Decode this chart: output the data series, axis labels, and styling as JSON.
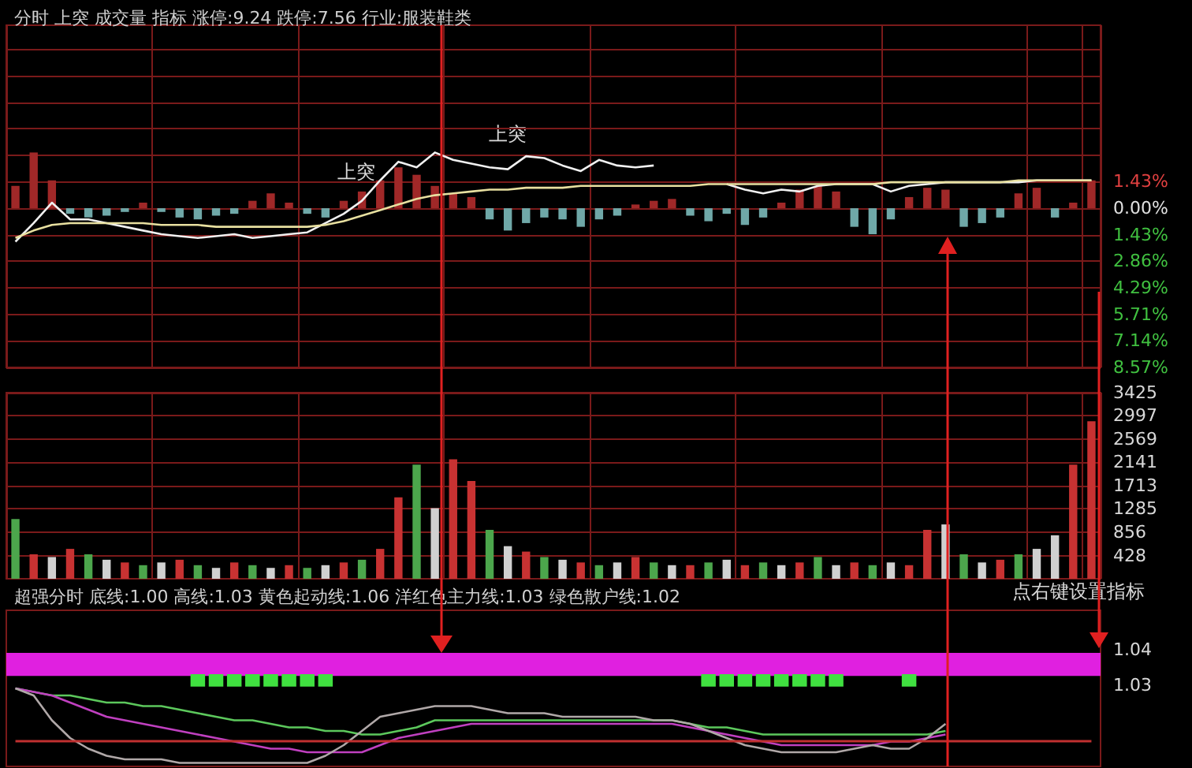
{
  "chart_data": [
    {
      "type": "line",
      "title": "分时 上突 成交量 指标 涨停:9.24 跌停:7.56 行业:服装鞋类",
      "categories": [
        null,
        null,
        null,
        null,
        null,
        null,
        null,
        null,
        null,
        null,
        null,
        null,
        null,
        null,
        null,
        null,
        null,
        null,
        null,
        null,
        null,
        null,
        null,
        null,
        null,
        null,
        null,
        null,
        null,
        null,
        null,
        null,
        null,
        null,
        null,
        null,
        null,
        null,
        null,
        null,
        null,
        null,
        null,
        null,
        null,
        null,
        null,
        null,
        null,
        null,
        null,
        null,
        null,
        null,
        null,
        null,
        null,
        null,
        null,
        null
      ],
      "series": [
        {
          "type": "bar",
          "values": [
            1.2,
            3.0,
            1.5,
            -0.3,
            -0.5,
            -0.4,
            -0.2,
            0.3,
            -0.2,
            -0.5,
            -0.6,
            -0.4,
            -0.3,
            0.4,
            0.8,
            0.3,
            -0.3,
            -0.5,
            0.4,
            0.9,
            1.5,
            2.2,
            1.8,
            1.2,
            0.8,
            0.6,
            -0.6,
            -1.2,
            -0.8,
            -0.5,
            -0.6,
            -1.0,
            -0.6,
            -0.4,
            0.2,
            0.4,
            0.5,
            -0.4,
            -0.7,
            -0.3,
            -0.9,
            -0.5,
            0.3,
            1.0,
            1.2,
            0.9,
            -1.0,
            -1.4,
            -0.6,
            0.6,
            1.1,
            1.0,
            -1.0,
            -0.8,
            -0.5,
            0.8,
            1.1,
            -0.5,
            0.3,
            1.5
          ],
          "colors": [
            "#a02828",
            "#a02828",
            "#a02828",
            "#6fa8a8",
            "#6fa8a8",
            "#6fa8a8",
            "#6fa8a8",
            "#a02828",
            "#6fa8a8",
            "#6fa8a8",
            "#6fa8a8",
            "#6fa8a8",
            "#6fa8a8",
            "#a02828",
            "#a02828",
            "#a02828",
            "#6fa8a8",
            "#6fa8a8",
            "#a02828",
            "#a02828",
            "#a02828",
            "#a02828",
            "#a02828",
            "#a02828",
            "#a02828",
            "#a02828",
            "#6fa8a8",
            "#6fa8a8",
            "#6fa8a8",
            "#6fa8a8",
            "#6fa8a8",
            "#6fa8a8",
            "#6fa8a8",
            "#6fa8a8",
            "#a02828",
            "#a02828",
            "#a02828",
            "#6fa8a8",
            "#6fa8a8",
            "#6fa8a8",
            "#6fa8a8",
            "#6fa8a8",
            "#a02828",
            "#a02828",
            "#a02828",
            "#a02828",
            "#6fa8a8",
            "#6fa8a8",
            "#6fa8a8",
            "#a02828",
            "#a02828",
            "#a02828",
            "#6fa8a8",
            "#6fa8a8",
            "#6fa8a8",
            "#a02828",
            "#a02828",
            "#6fa8a8",
            "#a02828",
            "#a02828"
          ]
        },
        {
          "color": "#f0f0f0",
          "values": [
            -1.8,
            -0.8,
            0.3,
            -0.6,
            -0.6,
            -0.8,
            -1.0,
            -1.2,
            -1.4,
            -1.5,
            -1.6,
            -1.5,
            -1.4,
            -1.6,
            -1.5,
            -1.4,
            -1.3,
            -0.8,
            -0.3,
            0.4,
            1.5,
            2.5,
            2.2,
            3.0,
            2.6,
            2.4,
            2.2,
            2.1,
            2.8,
            2.7,
            2.3,
            2.0,
            2.6,
            2.3,
            2.2,
            2.3,
            null,
            null,
            null,
            1.3,
            1.0,
            0.8,
            1.0,
            0.9,
            1.2,
            1.3,
            1.3,
            1.3,
            0.9,
            1.2,
            1.3,
            1.4,
            1.4,
            1.4,
            1.4,
            1.4,
            1.5,
            1.5,
            1.5,
            1.5
          ]
        },
        {
          "color": "#e8e0a0",
          "values": [
            -1.6,
            -1.2,
            -0.9,
            -0.8,
            -0.8,
            -0.8,
            -0.8,
            -0.8,
            -0.9,
            -0.9,
            -0.9,
            -1.0,
            -1.0,
            -1.0,
            -1.0,
            -1.0,
            -1.0,
            -0.9,
            -0.7,
            -0.4,
            -0.1,
            0.2,
            0.5,
            0.7,
            0.8,
            0.9,
            1.0,
            1.0,
            1.1,
            1.1,
            1.1,
            1.2,
            1.2,
            1.2,
            1.2,
            1.2,
            1.2,
            1.2,
            1.3,
            1.3,
            1.3,
            1.3,
            1.3,
            1.3,
            1.3,
            1.3,
            1.3,
            1.3,
            1.4,
            1.4,
            1.4,
            1.4,
            1.4,
            1.4,
            1.4,
            1.5,
            1.5,
            1.5,
            1.5,
            1.5
          ]
        }
      ],
      "ylim": [
        -8.57,
        9.85
      ],
      "yticks": [
        {
          "value": 8.57,
          "label": null
        },
        {
          "value": 7.14,
          "label": null
        },
        {
          "value": 5.71,
          "label": null
        },
        {
          "value": 4.29,
          "label": null
        },
        {
          "value": 2.86,
          "label": null
        },
        {
          "value": 1.43,
          "label": "1.43%"
        },
        {
          "value": 0,
          "label": "0.00%"
        },
        {
          "value": -1.43,
          "label": "1.43%"
        },
        {
          "value": -2.86,
          "label": "2.86%"
        },
        {
          "value": -4.29,
          "label": "4.29%"
        },
        {
          "value": -5.71,
          "label": "5.71%"
        },
        {
          "value": -7.14,
          "label": "7.14%"
        },
        {
          "value": -8.57,
          "label": "8.57%"
        }
      ],
      "annotations": [
        "上突",
        "上突"
      ],
      "grid": true,
      "marker": "none"
    },
    {
      "type": "bar",
      "categories": [
        null,
        null,
        null,
        null,
        null,
        null,
        null,
        null,
        null,
        null,
        null,
        null,
        null,
        null,
        null,
        null,
        null,
        null,
        null,
        null,
        null,
        null,
        null,
        null,
        null,
        null,
        null,
        null,
        null,
        null,
        null,
        null,
        null,
        null,
        null,
        null,
        null,
        null,
        null,
        null,
        null,
        null,
        null,
        null,
        null,
        null,
        null,
        null,
        null,
        null,
        null,
        null,
        null,
        null,
        null,
        null,
        null,
        null,
        null,
        null
      ],
      "values": [
        1100,
        450,
        400,
        550,
        450,
        350,
        300,
        250,
        300,
        350,
        250,
        200,
        300,
        250,
        200,
        250,
        200,
        250,
        300,
        350,
        550,
        1500,
        2100,
        1300,
        2200,
        1800,
        900,
        600,
        500,
        400,
        350,
        300,
        250,
        300,
        400,
        300,
        250,
        250,
        300,
        350,
        250,
        300,
        250,
        300,
        400,
        250,
        300,
        250,
        300,
        250,
        900,
        1000,
        450,
        300,
        350,
        450,
        550,
        800,
        2100,
        2900
      ],
      "colors": [
        "#4ca64c",
        "#c83232",
        "#d0d0d0",
        "#c83232",
        "#4ca64c",
        "#d0d0d0",
        "#c83232",
        "#4ca64c",
        "#d0d0d0",
        "#c83232",
        "#4ca64c",
        "#d0d0d0",
        "#c83232",
        "#4ca64c",
        "#d0d0d0",
        "#c83232",
        "#4ca64c",
        "#d0d0d0",
        "#c83232",
        "#4ca64c",
        "#c83232",
        "#c83232",
        "#4ca64c",
        "#d0d0d0",
        "#c83232",
        "#c83232",
        "#4ca64c",
        "#d0d0d0",
        "#c83232",
        "#4ca64c",
        "#d0d0d0",
        "#c83232",
        "#4ca64c",
        "#d0d0d0",
        "#c83232",
        "#4ca64c",
        "#d0d0d0",
        "#c83232",
        "#4ca64c",
        "#d0d0d0",
        "#c83232",
        "#4ca64c",
        "#d0d0d0",
        "#c83232",
        "#4ca64c",
        "#d0d0d0",
        "#c83232",
        "#4ca64c",
        "#d0d0d0",
        "#c83232",
        "#c83232",
        "#d0d0d0",
        "#4ca64c",
        "#d0d0d0",
        "#c83232",
        "#4ca64c",
        "#d0d0d0",
        "#d0d0d0",
        "#c83232",
        "#c83232"
      ],
      "ylim": [
        0,
        3425
      ],
      "yticks": [
        428,
        856,
        1285,
        1713,
        2141,
        2569,
        2997,
        3425
      ],
      "grid": true
    },
    {
      "type": "line",
      "title": "超强分时 底线:1.00 高线:1.03 黄色起动线:1.06 洋红色主力线:1.03 绿色散户线:1.02",
      "categories": [
        null,
        null,
        null,
        null,
        null,
        null,
        null,
        null,
        null,
        null,
        null,
        null,
        null,
        null,
        null,
        null,
        null,
        null,
        null,
        null,
        null,
        null,
        null,
        null,
        null,
        null,
        null,
        null,
        null,
        null,
        null,
        null,
        null,
        null,
        null,
        null,
        null,
        null,
        null,
        null,
        null,
        null,
        null,
        null,
        null,
        null,
        null,
        null,
        null,
        null,
        null,
        null,
        null,
        null,
        null,
        null,
        null,
        null,
        null,
        null
      ],
      "series": [
        {
          "type": "bar",
          "color": "#40e040",
          "values": [
            null,
            null,
            null,
            null,
            null,
            null,
            null,
            null,
            null,
            null,
            0.0035,
            0.0035,
            0.0035,
            0.0035,
            0.0035,
            0.0035,
            0.0035,
            0.0035,
            null,
            null,
            null,
            null,
            null,
            null,
            null,
            null,
            null,
            null,
            null,
            null,
            null,
            null,
            null,
            null,
            null,
            null,
            null,
            null,
            0.0035,
            0.0035,
            0.0035,
            0.0035,
            0.0035,
            0.0035,
            0.0035,
            0.0035,
            null,
            null,
            null,
            0.0035,
            null,
            null,
            null,
            null,
            null,
            null,
            null,
            null,
            null,
            null
          ],
          "base": [
            null,
            null,
            null,
            null,
            null,
            null,
            null,
            null,
            null,
            null,
            1.0295,
            1.0295,
            1.0295,
            1.0295,
            1.0295,
            1.0295,
            1.0295,
            1.0295,
            null,
            null,
            null,
            null,
            null,
            null,
            null,
            null,
            null,
            null,
            null,
            null,
            null,
            null,
            null,
            null,
            null,
            null,
            null,
            null,
            1.0295,
            1.0295,
            1.0295,
            1.0295,
            1.0295,
            1.0295,
            1.0295,
            1.0295,
            null,
            null,
            null,
            1.0295,
            null,
            null,
            null,
            null,
            null,
            null,
            null,
            null,
            null,
            null
          ]
        },
        {
          "color": "#5cc85c",
          "values": [
            1.029,
            1.028,
            1.027,
            1.027,
            1.026,
            1.025,
            1.025,
            1.024,
            1.024,
            1.023,
            1.022,
            1.021,
            1.02,
            1.02,
            1.019,
            1.018,
            1.018,
            1.017,
            1.017,
            1.016,
            1.016,
            1.017,
            1.018,
            1.02,
            1.02,
            1.02,
            1.02,
            1.02,
            1.02,
            1.02,
            1.02,
            1.02,
            1.02,
            1.02,
            1.02,
            1.02,
            1.02,
            1.019,
            1.018,
            1.018,
            1.017,
            1.016,
            1.016,
            1.016,
            1.016,
            1.016,
            1.016,
            1.016,
            1.016,
            1.016,
            1.016,
            1.017,
            null,
            null,
            null,
            null,
            null,
            null,
            null,
            null
          ]
        },
        {
          "color": "#c040c0",
          "values": [
            1.029,
            1.028,
            1.027,
            1.025,
            1.023,
            1.021,
            1.02,
            1.019,
            1.018,
            1.017,
            1.016,
            1.015,
            1.014,
            1.013,
            1.012,
            1.012,
            1.011,
            1.011,
            1.011,
            1.011,
            1.013,
            1.015,
            1.016,
            1.017,
            1.018,
            1.019,
            1.019,
            1.019,
            1.019,
            1.019,
            1.019,
            1.019,
            1.019,
            1.019,
            1.019,
            1.019,
            1.019,
            1.018,
            1.017,
            1.016,
            1.015,
            1.014,
            1.013,
            1.013,
            1.013,
            1.013,
            1.013,
            1.013,
            1.014,
            1.014,
            1.015,
            1.016,
            null,
            null,
            null,
            null,
            null,
            null,
            null,
            null
          ]
        },
        {
          "color": "#b0a8a8",
          "values": [
            1.029,
            1.027,
            1.02,
            1.015,
            1.012,
            1.01,
            1.009,
            1.009,
            1.009,
            1.008,
            1.008,
            1.008,
            1.008,
            1.008,
            1.008,
            1.008,
            1.008,
            1.01,
            1.013,
            1.017,
            1.021,
            1.022,
            1.023,
            1.024,
            1.024,
            1.024,
            1.023,
            1.022,
            1.022,
            1.022,
            1.021,
            1.021,
            1.021,
            1.021,
            1.021,
            1.02,
            1.02,
            1.019,
            1.017,
            1.015,
            1.013,
            1.012,
            1.011,
            1.011,
            1.011,
            1.011,
            1.012,
            1.013,
            1.012,
            1.012,
            1.015,
            1.019,
            null,
            null,
            null,
            null,
            null,
            null,
            null,
            null
          ]
        }
      ],
      "ylim": [
        1.007,
        1.051
      ],
      "yticks": [
        1.03,
        1.04
      ],
      "bands": [
        {
          "axis": "y",
          "from": 1.0325,
          "to": 1.039,
          "color": "#e020e0"
        }
      ],
      "ref_lines": [
        {
          "axis": "y",
          "value": 1.014,
          "color": "#c03030"
        }
      ],
      "annotations": [
        "点右键设置指标"
      ],
      "marker": "none"
    }
  ]
}
